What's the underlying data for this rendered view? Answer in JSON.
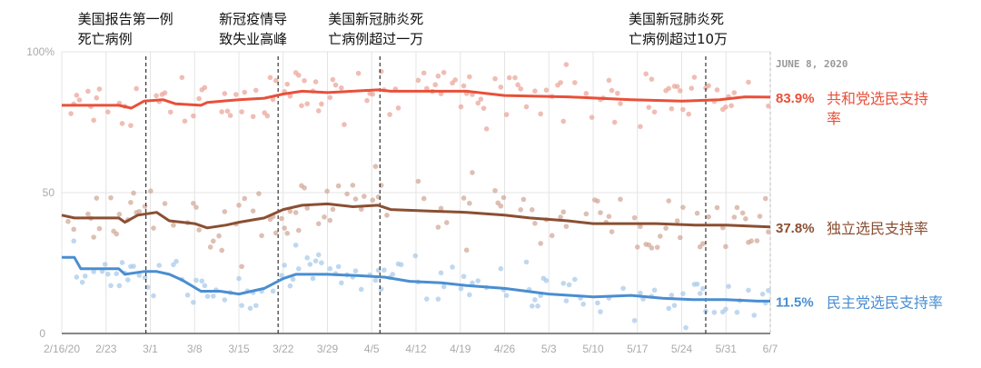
{
  "chart_data": {
    "type": "line",
    "title": "",
    "date_label": "JUNE 8, 2020",
    "xlabel": "",
    "ylabel": "",
    "ylim": [
      0,
      100
    ],
    "y_ticks": [
      {
        "v": 0,
        "label": "0"
      },
      {
        "v": 50,
        "label": "50"
      },
      {
        "v": 100,
        "label": "100%"
      }
    ],
    "x_start": "2020-02-16",
    "x_days": 112,
    "x_ticks": [
      {
        "d": 0,
        "label": "2/16/20"
      },
      {
        "d": 7,
        "label": "2/23"
      },
      {
        "d": 14,
        "label": "3/1"
      },
      {
        "d": 21,
        "label": "3/8"
      },
      {
        "d": 28,
        "label": "3/15"
      },
      {
        "d": 35,
        "label": "3/22"
      },
      {
        "d": 42,
        "label": "3/29"
      },
      {
        "d": 49,
        "label": "4/5"
      },
      {
        "d": 56,
        "label": "4/12"
      },
      {
        "d": 63,
        "label": "4/19"
      },
      {
        "d": 70,
        "label": "4/26"
      },
      {
        "d": 77,
        "label": "5/3"
      },
      {
        "d": 84,
        "label": "5/10"
      },
      {
        "d": 91,
        "label": "5/17"
      },
      {
        "d": 98,
        "label": "5/24"
      },
      {
        "d": 105,
        "label": "5/31"
      },
      {
        "d": 112,
        "label": "6/7"
      }
    ],
    "events": [
      {
        "d": 13.3,
        "lines": [
          "美国报告第一例",
          "死亡病例"
        ],
        "text_x_offset": -75
      },
      {
        "d": 34.2,
        "lines": [
          "新冠疫情导",
          "致失业高峰"
        ],
        "text_x_offset": -65
      },
      {
        "d": 50.3,
        "lines": [
          "美国新冠肺炎死",
          "亡病例超过一万"
        ],
        "text_x_offset": -57
      },
      {
        "d": 101.8,
        "lines": [
          "美国新冠肺炎死",
          "亡病例超过10万"
        ],
        "text_x_offset": -85
      }
    ],
    "series": [
      {
        "name": "共和党选民支持率",
        "name_lines": [
          "共和党选民支持",
          "率"
        ],
        "final_label": "83.9%",
        "color": "#e8503a",
        "dot_color": "#eba79b",
        "points": [
          [
            0,
            81
          ],
          [
            9,
            81
          ],
          [
            11,
            80
          ],
          [
            13,
            82.5
          ],
          [
            16,
            83
          ],
          [
            18,
            81.5
          ],
          [
            22,
            81
          ],
          [
            23,
            82
          ],
          [
            28,
            83
          ],
          [
            32,
            83.5
          ],
          [
            35,
            85
          ],
          [
            38,
            86
          ],
          [
            42,
            85.5
          ],
          [
            50,
            86.5
          ],
          [
            52,
            86
          ],
          [
            58,
            86
          ],
          [
            64,
            86
          ],
          [
            70,
            84.5
          ],
          [
            80,
            84
          ],
          [
            90,
            83
          ],
          [
            98,
            82.5
          ],
          [
            104,
            83
          ],
          [
            108,
            84
          ],
          [
            112,
            83.9
          ]
        ]
      },
      {
        "name": "独立选民支持率",
        "name_lines": [
          "独立选民支持率"
        ],
        "final_label": "37.8%",
        "color": "#8b4f32",
        "dot_color": "#d2a99a",
        "points": [
          [
            0,
            42
          ],
          [
            2,
            41
          ],
          [
            9,
            41
          ],
          [
            10,
            39.5
          ],
          [
            12,
            42
          ],
          [
            15,
            43
          ],
          [
            17,
            40
          ],
          [
            21,
            39
          ],
          [
            23,
            37.5
          ],
          [
            26,
            38.5
          ],
          [
            28,
            39.5
          ],
          [
            32,
            41
          ],
          [
            35,
            44
          ],
          [
            38,
            45.5
          ],
          [
            42,
            46
          ],
          [
            46,
            45
          ],
          [
            50,
            45.5
          ],
          [
            52,
            44
          ],
          [
            58,
            43.5
          ],
          [
            64,
            43
          ],
          [
            70,
            42
          ],
          [
            74,
            41
          ],
          [
            80,
            40
          ],
          [
            84,
            39
          ],
          [
            94,
            39
          ],
          [
            100,
            38.5
          ],
          [
            105,
            38.5
          ],
          [
            112,
            37.8
          ]
        ]
      },
      {
        "name": "民主党选民支持率",
        "name_lines": [
          "民主党选民支持率"
        ],
        "final_label": "11.5%",
        "color": "#4a8ed1",
        "dot_color": "#a9cbea",
        "points": [
          [
            0,
            27
          ],
          [
            2,
            27
          ],
          [
            3,
            23
          ],
          [
            9,
            23
          ],
          [
            10,
            21
          ],
          [
            13,
            22
          ],
          [
            15,
            22
          ],
          [
            17,
            21
          ],
          [
            19,
            19
          ],
          [
            22,
            15
          ],
          [
            25,
            15
          ],
          [
            28,
            14
          ],
          [
            32,
            16
          ],
          [
            35,
            19.5
          ],
          [
            37,
            21
          ],
          [
            42,
            21
          ],
          [
            47,
            20.5
          ],
          [
            51,
            20
          ],
          [
            55,
            18.5
          ],
          [
            60,
            18
          ],
          [
            64,
            17
          ],
          [
            70,
            16
          ],
          [
            77,
            14
          ],
          [
            84,
            13
          ],
          [
            90,
            13.5
          ],
          [
            95,
            12.5
          ],
          [
            100,
            12
          ],
          [
            105,
            12
          ],
          [
            110,
            11.5
          ],
          [
            112,
            11.5
          ]
        ]
      }
    ]
  }
}
